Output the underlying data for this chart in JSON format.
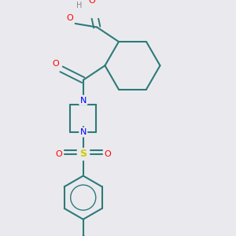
{
  "background_color": "#eaeaee",
  "bond_color": "#2d7a7a",
  "atom_colors": {
    "O": "#ff0000",
    "N": "#0000ff",
    "S": "#cccc00",
    "H": "#888888",
    "C": "#2d7a7a"
  },
  "figsize": [
    3.0,
    3.0
  ],
  "dpi": 100
}
